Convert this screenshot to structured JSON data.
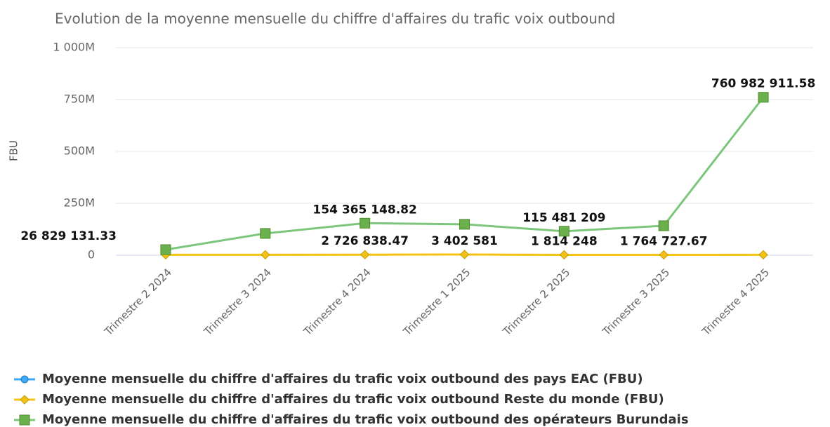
{
  "chart_data": {
    "type": "line",
    "title": "Evolution de la moyenne mensuelle du chiffre d'affaires du trafic voix outbound",
    "y_label": "FBU",
    "categories": [
      "Trimestre 2 2024",
      "Trimestre 3 2024",
      "Trimestre 4 2024",
      "Trimestre 1 2025",
      "Trimestre 2 2025",
      "Trimestre 3 2025",
      "Trimestre 4 2025"
    ],
    "ylim": [
      0,
      1000000000
    ],
    "yticks": [
      0,
      {
        "value": 250000000,
        "label": "250M"
      },
      {
        "value": 500000000,
        "label": "500M"
      },
      {
        "value": 750000000,
        "label": "750M"
      },
      {
        "value": 1000000000,
        "label": "1 000M"
      }
    ],
    "grid": true,
    "legend": "bottom",
    "series": [
      {
        "name": "Moyenne mensuelle du chiffre d'affaires du trafic voix outbound des pays EAC (FBU)",
        "color": "#3fa9f5",
        "marker": "circle",
        "values": [
          null,
          null,
          null,
          null,
          null,
          null,
          null
        ]
      },
      {
        "name": "Moyenne mensuelle du chiffre d'affaires du trafic voix outbound Reste du monde (FBU)",
        "color": "#f2c314",
        "marker": "diamond",
        "values": [
          2000000,
          2000000,
          2726838.47,
          3402581,
          1814248,
          1764727.67,
          2000000
        ],
        "value_labels": [
          null,
          null,
          "2 726 838.47",
          "3 402 581",
          "1 814 248",
          "1 764 727.67",
          null
        ]
      },
      {
        "name": "Moyenne mensuelle du chiffre d'affaires du trafic voix outbound des opérateurs Burundais",
        "color": "#7cc67c",
        "marker": "square",
        "values": [
          26829131.33,
          105000000,
          154365148.82,
          149000000,
          115481209,
          142000000,
          760982911.58
        ],
        "value_labels": [
          "26 829 131.33",
          null,
          "154 365 148.82",
          null,
          "115 481 209",
          null,
          "760 982 911.58"
        ]
      }
    ]
  }
}
